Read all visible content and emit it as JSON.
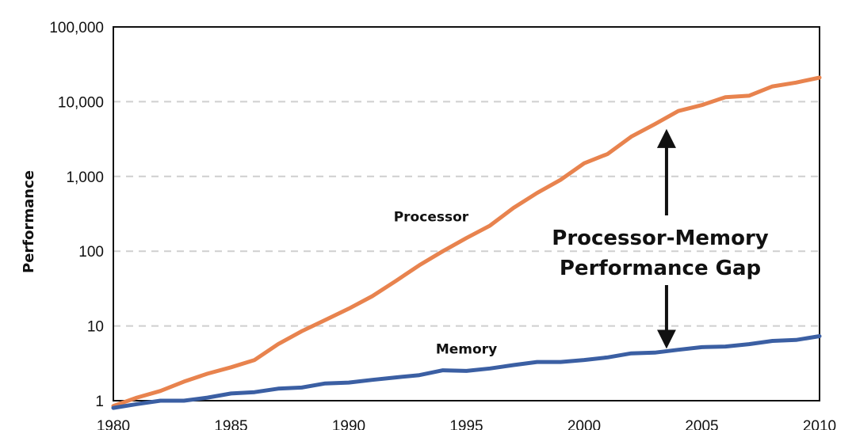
{
  "chart_data": {
    "type": "line",
    "title": "",
    "xlabel": "",
    "ylabel": "Performance",
    "y_scale": "log",
    "ylim": [
      1,
      100000
    ],
    "xlim": [
      1980,
      2010
    ],
    "grid": "horizontal dashed",
    "x_ticks": [
      "1980",
      "1985",
      "1990",
      "1995",
      "2000",
      "2005",
      "2010"
    ],
    "y_ticks": [
      "1",
      "10",
      "100",
      "1,000",
      "10,000",
      "100,000"
    ],
    "series": [
      {
        "name": "Processor",
        "color": "#e8834e",
        "x": [
          1980,
          1981,
          1982,
          1983,
          1984,
          1985,
          1986,
          1987,
          1988,
          1989,
          1990,
          1991,
          1992,
          1993,
          1994,
          1995,
          1996,
          1997,
          1998,
          1999,
          2000,
          2001,
          2002,
          2003,
          2004,
          2005,
          2006,
          2007,
          2008,
          2009,
          2010
        ],
        "values": [
          0.85,
          1.1,
          1.35,
          1.8,
          2.3,
          2.8,
          3.5,
          5.7,
          8.5,
          12,
          17,
          25,
          40,
          65,
          100,
          150,
          220,
          380,
          600,
          900,
          1500,
          2000,
          3400,
          5000,
          7500,
          9000,
          11500,
          12000,
          16000,
          18000,
          21000
        ]
      },
      {
        "name": "Memory",
        "color": "#3b5fa3",
        "x": [
          1980,
          1981,
          1982,
          1983,
          1984,
          1985,
          1986,
          1987,
          1988,
          1989,
          1990,
          1991,
          1992,
          1993,
          1994,
          1995,
          1996,
          1997,
          1998,
          1999,
          2000,
          2001,
          2002,
          2003,
          2004,
          2005,
          2006,
          2007,
          2008,
          2009,
          2010
        ],
        "values": [
          0.8,
          0.9,
          1.0,
          1.0,
          1.1,
          1.25,
          1.3,
          1.45,
          1.5,
          1.7,
          1.75,
          1.9,
          2.05,
          2.2,
          2.55,
          2.5,
          2.7,
          3.0,
          3.3,
          3.3,
          3.5,
          3.8,
          4.3,
          4.4,
          4.8,
          5.2,
          5.3,
          5.7,
          6.3,
          6.5,
          7.3
        ]
      }
    ],
    "annotation": {
      "line1": "Processor-Memory",
      "line2": "Performance Gap",
      "arrow_from_year": 2003.5,
      "arrow_top_value": 5000,
      "arrow_bottom_value": 4.5
    }
  }
}
